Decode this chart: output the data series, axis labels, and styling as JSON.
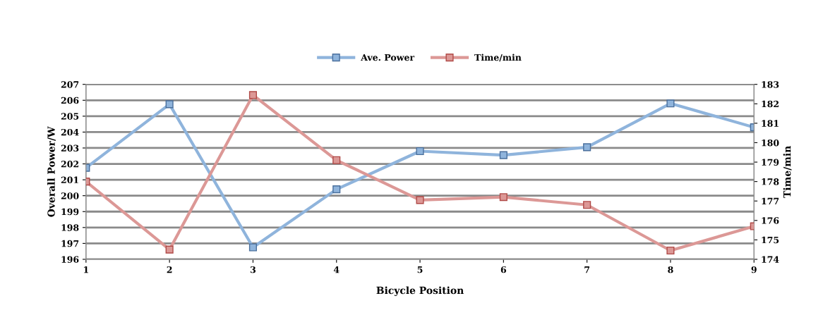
{
  "chart_data": {
    "type": "line",
    "xlabel": "Bicycle Position",
    "ylabel": "Overall Power/W",
    "y2label": "Time/min",
    "x": [
      1,
      2,
      3,
      4,
      5,
      6,
      7,
      8,
      9
    ],
    "series": [
      {
        "name": "Ave. Power",
        "color": "#8fb4dc",
        "values": [
          201.75,
          205.75,
          196.75,
          200.4,
          202.8,
          202.55,
          203.05,
          205.8,
          204.3
        ]
      },
      {
        "name": "Time/min",
        "color": "#dc9896",
        "axis": "y2",
        "values": [
          178.0,
          174.5,
          182.45,
          179.1,
          177.05,
          177.2,
          176.8,
          174.45,
          175.7
        ]
      }
    ],
    "xlim": [
      1,
      9
    ],
    "xticks": [
      1,
      2,
      3,
      4,
      5,
      6,
      7,
      8,
      9
    ],
    "ylim": [
      196,
      207
    ],
    "yticks": [
      196,
      197,
      198,
      199,
      200,
      201,
      202,
      203,
      204,
      205,
      206,
      207
    ],
    "y2lim": [
      174,
      183
    ],
    "y2ticks": [
      174,
      175,
      176,
      177,
      178,
      179,
      180,
      181,
      182,
      183
    ],
    "grid": "y",
    "legend": "top",
    "marker": "square",
    "line_style": "solid"
  }
}
